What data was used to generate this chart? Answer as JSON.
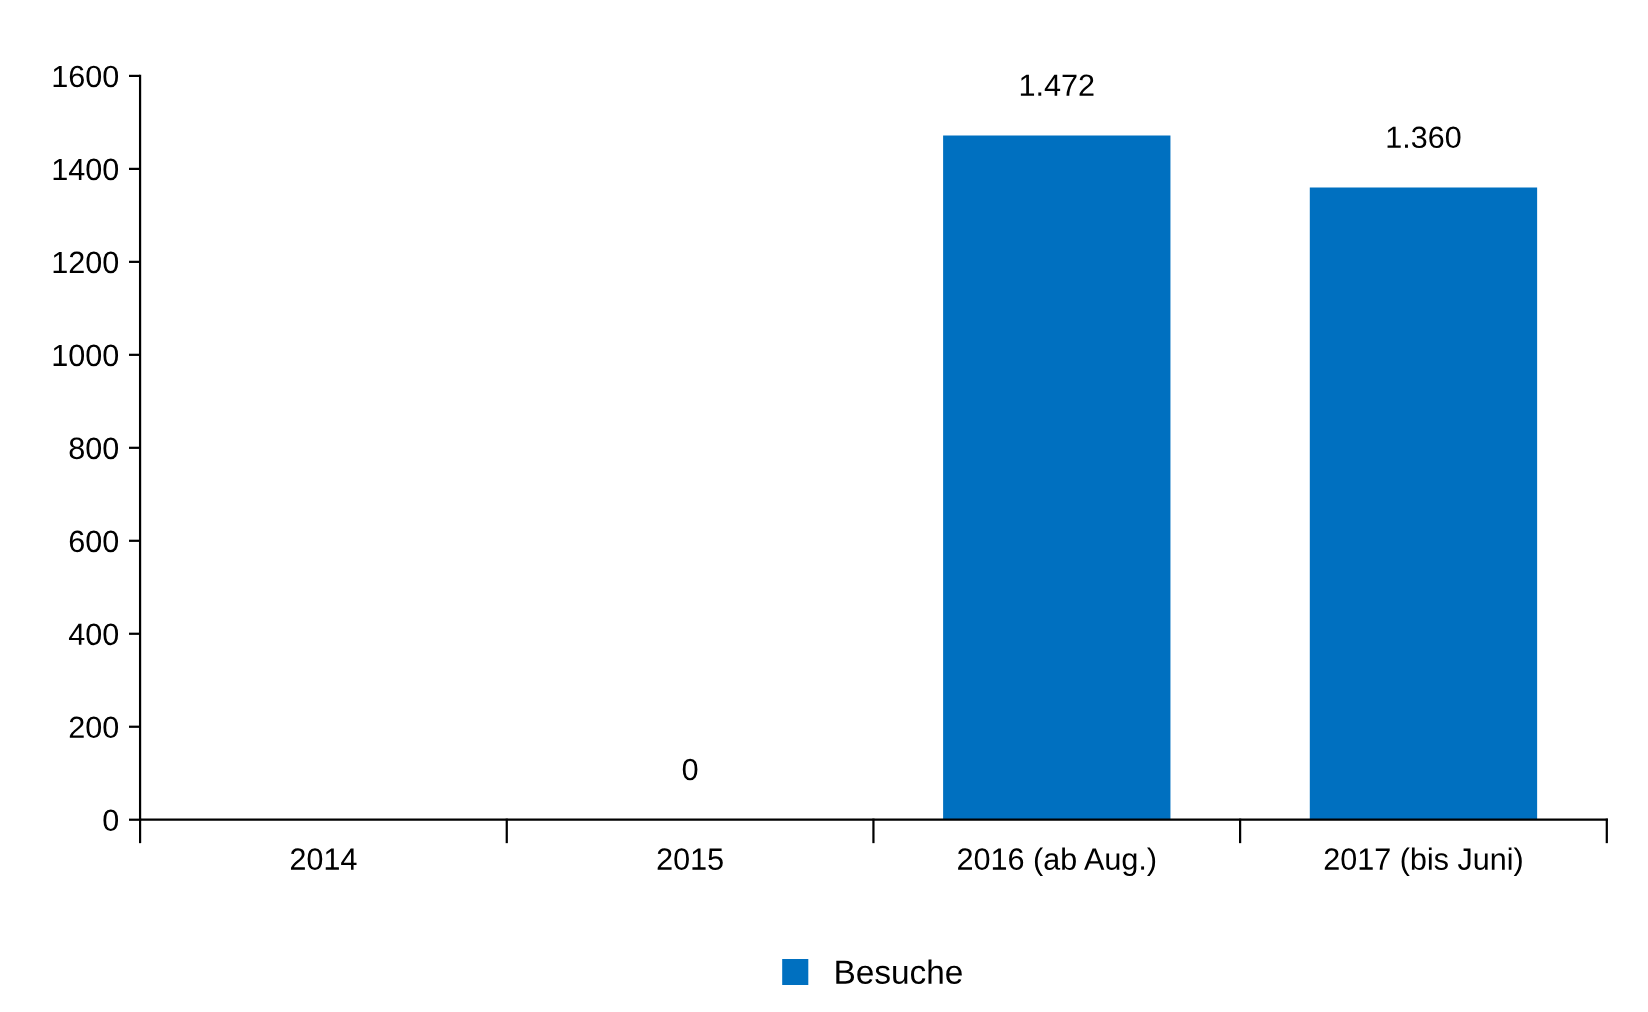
{
  "chart_data": {
    "type": "bar",
    "categories": [
      "2014",
      "2015",
      "2016 (ab Aug.)",
      "2017 (bis Juni)"
    ],
    "series": [
      {
        "name": "Besuche",
        "color": "#0070c0",
        "values": [
          null,
          0,
          1472,
          1360
        ],
        "value_labels": [
          null,
          "0",
          "1.472",
          "1.360"
        ]
      }
    ],
    "ylim": [
      0,
      1600
    ],
    "yticks": [
      0,
      200,
      400,
      600,
      800,
      1000,
      1200,
      1400,
      1600
    ],
    "grid": false,
    "legend": "bottom"
  }
}
